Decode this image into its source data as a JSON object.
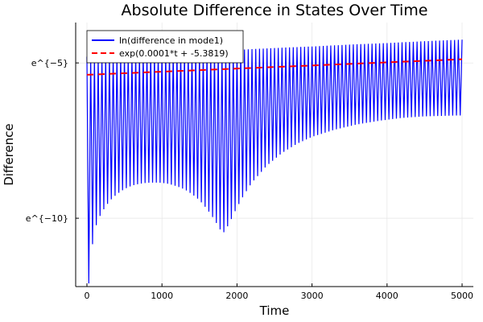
{
  "chart_data": {
    "type": "line",
    "title": "Absolute Difference in States Over Time",
    "xlabel": "Time",
    "ylabel": "Difference",
    "xlim": [
      -150,
      5150
    ],
    "ylim": [
      -12.2,
      -3.7
    ],
    "x_ticks": [
      {
        "value": 0,
        "label": "0"
      },
      {
        "value": 1000,
        "label": "1000"
      },
      {
        "value": 2000,
        "label": "2000"
      },
      {
        "value": 3000,
        "label": "3000"
      },
      {
        "value": 4000,
        "label": "4000"
      },
      {
        "value": 5000,
        "label": "5000"
      }
    ],
    "y_ticks": [
      {
        "value": -5,
        "label": "e^{−5}"
      },
      {
        "value": -10,
        "label": "e^{−10}"
      }
    ],
    "grid": true,
    "legend_position": "top-left",
    "series": [
      {
        "name": "ln(difference in mode1)",
        "color": "#0000ff",
        "style": "solid",
        "oscillation_period": 50,
        "x_range": [
          0,
          5000
        ],
        "upper_envelope": {
          "x": [
            0,
            250,
            500,
            1000,
            1500,
            2000,
            2500,
            3000,
            3500,
            4000,
            4500,
            5000
          ],
          "y": [
            -4.8,
            -4.78,
            -4.75,
            -4.7,
            -4.64,
            -4.58,
            -4.52,
            -4.47,
            -4.41,
            -4.36,
            -4.3,
            -4.25
          ]
        },
        "lower_envelope": {
          "x": [
            0,
            25,
            60,
            100,
            150,
            200,
            300,
            400,
            500,
            600,
            700,
            800,
            900,
            1000,
            1100,
            1200,
            1300,
            1400,
            1500,
            1600,
            1700,
            1780,
            1830,
            1900,
            2000,
            2100,
            2200,
            2400,
            2600,
            2800,
            3000,
            3300,
            3600,
            3900,
            4200,
            4500,
            4800,
            5000
          ],
          "y": [
            -9.8,
            -12.1,
            -11.1,
            -10.4,
            -10.05,
            -9.8,
            -9.45,
            -9.22,
            -9.06,
            -8.95,
            -8.89,
            -8.86,
            -8.85,
            -8.86,
            -8.9,
            -8.97,
            -9.07,
            -9.22,
            -9.42,
            -9.7,
            -10.05,
            -10.38,
            -10.46,
            -10.15,
            -9.65,
            -9.22,
            -8.85,
            -8.3,
            -7.9,
            -7.6,
            -7.38,
            -7.15,
            -6.98,
            -6.86,
            -6.77,
            -6.72,
            -6.7,
            -6.69
          ]
        }
      },
      {
        "name": "exp(0.0001*t + -5.3819)",
        "color": "#ff0000",
        "style": "dashed",
        "x": [
          0,
          5000
        ],
        "y": [
          -5.3819,
          -4.8819
        ]
      }
    ]
  }
}
